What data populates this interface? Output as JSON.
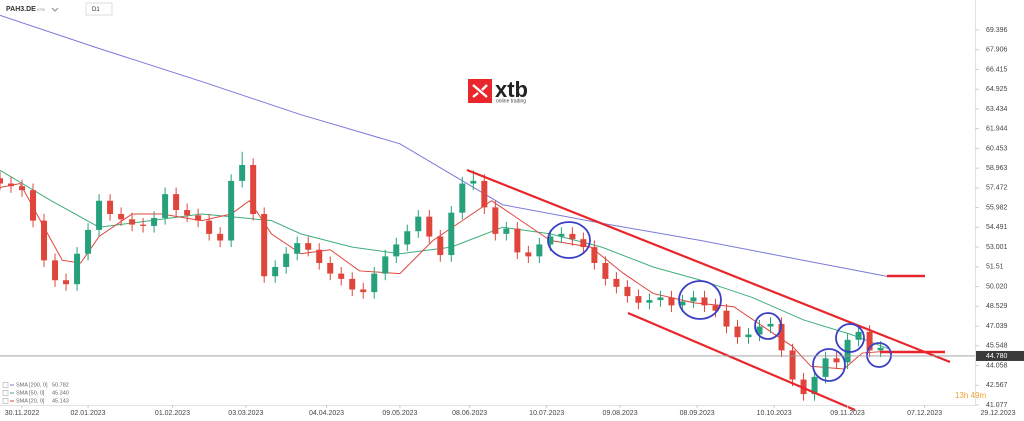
{
  "chart_data": {
    "type": "candlestick",
    "symbol": "PAH3.DE",
    "exchange": "XTB",
    "timeframe": "D1",
    "logo": {
      "brand": "xtb",
      "tagline": "online trading"
    },
    "countdown": "13h 49m",
    "up_color": "#26a17b",
    "down_color": "#e0453c",
    "xlim": [
      -6,
      266
    ],
    "ylim": [
      41.077,
      71.66
    ],
    "xticks": [
      {
        "value": 0,
        "label": "30.11.2022"
      },
      {
        "value": 18,
        "label": "02.01.2023"
      },
      {
        "value": 41,
        "label": "01.02.2023"
      },
      {
        "value": 61,
        "label": "03.03.2023"
      },
      {
        "value": 83,
        "label": "04.04.2023"
      },
      {
        "value": 103,
        "label": "09.05.2023"
      },
      {
        "value": 122,
        "label": "08.06.2023"
      },
      {
        "value": 143,
        "label": "10.07.2023"
      },
      {
        "value": 163,
        "label": "09.08.2023"
      },
      {
        "value": 184,
        "label": "08.09.2023"
      },
      {
        "value": 205,
        "label": "10.10.2023"
      },
      {
        "value": 225,
        "label": "09.11.2023"
      },
      {
        "value": 246,
        "label": "07.12.2023"
      },
      {
        "value": 266,
        "label": "29.12.2023"
      }
    ],
    "yticks": [
      41.077,
      42.567,
      44.058,
      45.548,
      47.039,
      48.529,
      {
        "value": 50.02,
        "label": "50.020"
      },
      51.51,
      53.001,
      54.491,
      55.982,
      57.472,
      58.963,
      60.453,
      61.944,
      63.434,
      64.925,
      66.415,
      67.906,
      69.396
    ],
    "last_price": {
      "value": 44.78,
      "label": "44.780"
    },
    "x": [
      -6,
      -3,
      0,
      3,
      6,
      9,
      12,
      15,
      18,
      21,
      24,
      27,
      30,
      33,
      36,
      39,
      42,
      45,
      48,
      51,
      54,
      57,
      60,
      63,
      66,
      69,
      72,
      75,
      78,
      81,
      84,
      87,
      90,
      93,
      96,
      99,
      102,
      105,
      108,
      111,
      114,
      117,
      120,
      123,
      126,
      129,
      132,
      135,
      138,
      141,
      144,
      147,
      150,
      153,
      156,
      159,
      162,
      165,
      168,
      171,
      174,
      177,
      180,
      183,
      186,
      189,
      192,
      195,
      198,
      201,
      204,
      207,
      210,
      213,
      216,
      219,
      222,
      225,
      228,
      231,
      234
    ],
    "open": [
      58.2,
      57.8,
      57.6,
      57.3,
      55.0,
      52.0,
      50.5,
      50.2,
      52.5,
      54.3,
      56.5,
      55.5,
      55.1,
      54.7,
      54.6,
      55.2,
      57.0,
      55.8,
      55.4,
      55.0,
      54.0,
      53.5,
      58.0,
      59.2,
      55.5,
      50.8,
      51.5,
      52.5,
      53.3,
      52.8,
      51.8,
      51.0,
      50.6,
      49.8,
      49.6,
      51.0,
      52.3,
      53.2,
      54.2,
      55.3,
      53.8,
      52.4,
      55.6,
      57.8,
      58.0,
      56.0,
      54.0,
      54.4,
      52.6,
      52.3,
      53.2,
      53.8,
      54.0,
      53.6,
      53.0,
      51.8,
      50.6,
      50.0,
      49.3,
      48.8,
      49.0,
      49.2,
      48.6,
      48.9,
      49.2,
      48.6,
      48.2,
      47.0,
      46.2,
      46.4,
      47.0,
      47.2,
      45.2,
      43.0,
      41.9,
      43.2,
      44.6,
      44.3,
      46.0,
      46.6,
      45.2
    ],
    "high": [
      58.7,
      58.3,
      58.1,
      57.8,
      55.5,
      52.5,
      51.0,
      53.0,
      54.8,
      57.0,
      57.0,
      56.0,
      55.6,
      55.2,
      55.7,
      57.5,
      57.5,
      56.3,
      55.9,
      55.5,
      54.5,
      58.5,
      60.2,
      59.7,
      56.0,
      52.0,
      53.0,
      53.8,
      53.8,
      53.3,
      52.3,
      51.5,
      51.1,
      50.3,
      51.5,
      52.8,
      53.7,
      54.7,
      55.8,
      55.8,
      54.3,
      56.1,
      58.3,
      58.8,
      58.5,
      56.5,
      54.9,
      54.9,
      53.1,
      53.7,
      54.3,
      54.5,
      54.5,
      54.1,
      53.5,
      52.3,
      51.1,
      50.5,
      49.8,
      49.5,
      49.7,
      49.7,
      49.4,
      49.7,
      49.7,
      49.1,
      48.7,
      47.5,
      46.9,
      47.5,
      47.7,
      47.7,
      45.7,
      43.5,
      43.7,
      45.1,
      45.1,
      46.5,
      47.1,
      47.1,
      45.9
    ],
    "low": [
      57.3,
      57.1,
      56.8,
      54.5,
      51.5,
      50.0,
      49.7,
      49.7,
      52.0,
      53.8,
      55.0,
      54.6,
      54.2,
      54.1,
      54.1,
      54.7,
      55.3,
      54.9,
      54.5,
      53.5,
      53.0,
      53.0,
      57.5,
      55.0,
      50.3,
      50.3,
      51.0,
      52.0,
      52.3,
      51.3,
      50.5,
      50.1,
      49.3,
      49.1,
      49.1,
      50.5,
      51.8,
      52.7,
      53.7,
      53.3,
      51.9,
      51.9,
      55.1,
      57.3,
      55.5,
      53.5,
      53.5,
      52.1,
      51.8,
      51.8,
      52.7,
      53.3,
      53.1,
      52.5,
      51.3,
      50.1,
      49.5,
      48.8,
      48.3,
      48.3,
      48.5,
      48.1,
      48.1,
      48.4,
      48.1,
      47.7,
      46.5,
      45.7,
      45.7,
      45.9,
      46.5,
      44.7,
      42.5,
      41.4,
      41.4,
      42.7,
      43.8,
      43.8,
      45.5,
      44.7,
      44.7
    ],
    "close": [
      57.8,
      57.6,
      57.3,
      55.0,
      52.0,
      50.5,
      50.2,
      52.5,
      54.3,
      56.5,
      55.5,
      55.1,
      54.7,
      54.6,
      55.2,
      57.0,
      55.8,
      55.4,
      55.0,
      54.0,
      53.5,
      58.0,
      59.2,
      55.5,
      50.8,
      51.5,
      52.5,
      53.3,
      52.8,
      51.8,
      51.0,
      50.6,
      49.8,
      49.6,
      51.0,
      52.3,
      53.2,
      54.2,
      55.3,
      53.8,
      52.4,
      55.6,
      57.8,
      58.0,
      56.0,
      54.0,
      54.4,
      52.6,
      52.3,
      53.2,
      53.8,
      54.0,
      53.6,
      53.0,
      51.8,
      50.6,
      50.0,
      49.3,
      48.8,
      49.0,
      49.2,
      48.6,
      48.9,
      49.2,
      48.6,
      48.2,
      47.0,
      46.2,
      46.4,
      47.0,
      47.2,
      45.2,
      43.0,
      41.9,
      43.2,
      44.6,
      44.3,
      46.0,
      46.6,
      45.2,
      45.4
    ],
    "series": [
      {
        "name": "SMA [200, 0]",
        "last": 50.782,
        "color": "#7b7bd8",
        "x": [
          -6,
          21,
          49,
          76,
          103,
          131,
          158,
          185,
          213,
          236
        ],
        "values": [
          70.5,
          68.0,
          65.5,
          63.0,
          60.8,
          56.2,
          54.8,
          53.5,
          52.0,
          50.782
        ]
      },
      {
        "name": "SMA [50, 0]",
        "last": {
          "value": 45.34,
          "label": "45.340"
        },
        "color": "#3fae7a",
        "x": [
          -6,
          8,
          21,
          35,
          49,
          68,
          76,
          90,
          103,
          117,
          131,
          144,
          158,
          172,
          185,
          199,
          213,
          226,
          236
        ],
        "values": [
          58.8,
          56.5,
          54.5,
          55.0,
          55.5,
          55.0,
          54.0,
          53.0,
          52.5,
          53.0,
          54.5,
          54.0,
          53.0,
          51.5,
          50.5,
          49.2,
          47.5,
          46.4,
          45.34
        ]
      },
      {
        "name": "SMA [20, 0]",
        "last": 45.143,
        "color": "#e0453c",
        "x": [
          -6,
          -0.5,
          5,
          11,
          16,
          21,
          30,
          38,
          49,
          57,
          62,
          68,
          76,
          84,
          92,
          103,
          112,
          120,
          128,
          136,
          144,
          155,
          164,
          172,
          183,
          194,
          202,
          210,
          215,
          224,
          229,
          236
        ],
        "values": [
          57.5,
          57.8,
          55.0,
          52.0,
          51.8,
          53.8,
          55.5,
          55.5,
          55.0,
          55.5,
          56.5,
          54.0,
          52.5,
          52.8,
          51.2,
          51.0,
          53.5,
          55.0,
          56.5,
          55.0,
          53.5,
          53.0,
          51.0,
          49.5,
          48.8,
          48.5,
          47.0,
          45.5,
          44.0,
          43.8,
          45.0,
          45.143
        ]
      }
    ]
  }
}
